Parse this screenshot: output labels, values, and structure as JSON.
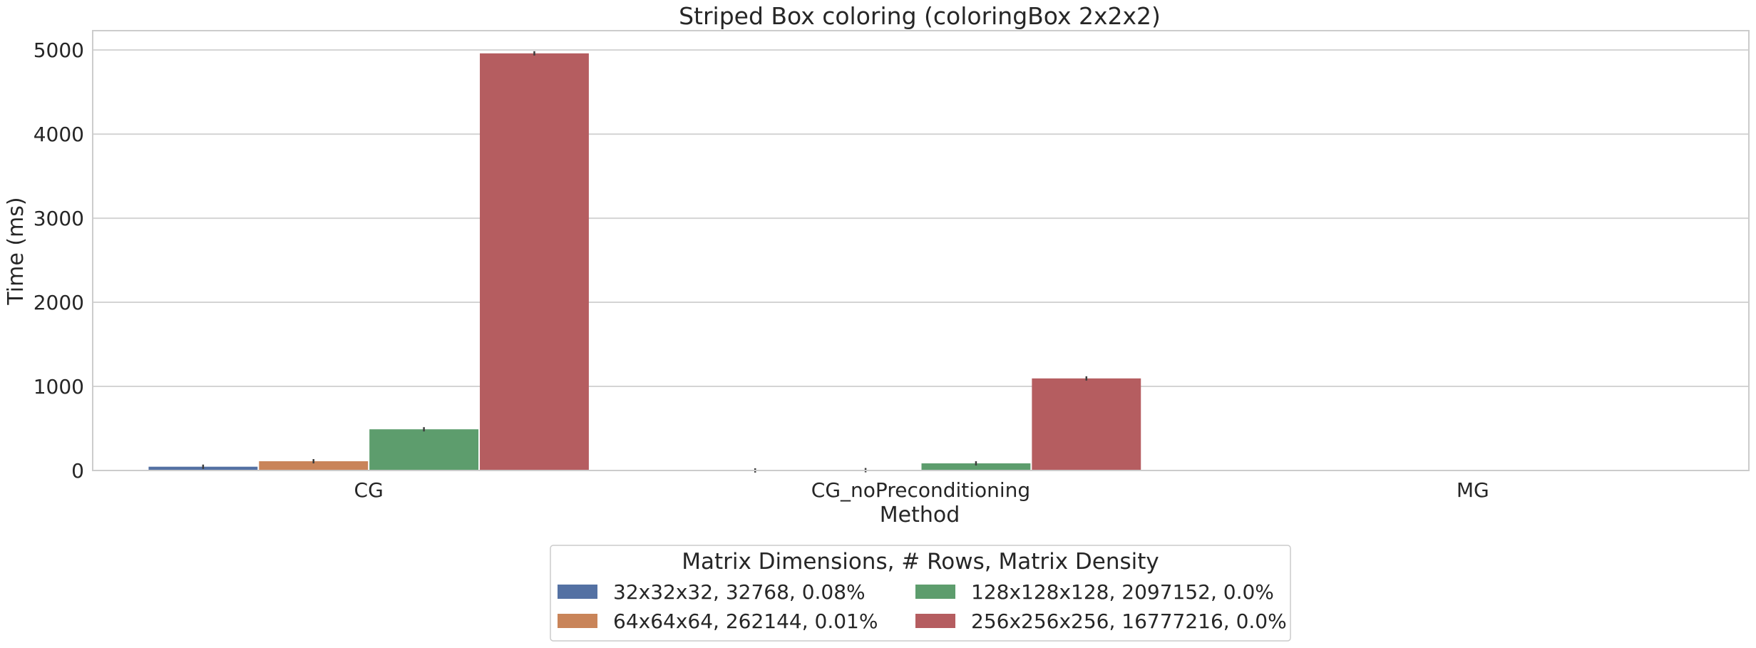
{
  "chart_data": {
    "type": "bar",
    "title": "Striped Box coloring (coloringBox 2x2x2)",
    "xlabel": "Method",
    "ylabel": "Time (ms)",
    "categories": [
      "CG",
      "CG_noPreconditioning",
      "MG"
    ],
    "ylim": [
      0,
      5230
    ],
    "yticks": [
      0,
      1000,
      2000,
      3000,
      4000,
      5000
    ],
    "grid": "horizontal",
    "legend": {
      "title": "Matrix Dimensions, # Rows, Matrix Density",
      "placement": "bottom-center",
      "columns": 2
    },
    "series": [
      {
        "name": "32x32x32, 32768, 0.08%",
        "color": "#5471a3",
        "values": [
          45,
          1,
          0
        ]
      },
      {
        "name": "64x64x64, 262144, 0.01%",
        "color": "#c98459",
        "values": [
          110,
          4,
          0
        ]
      },
      {
        "name": "128x128x128, 2097152, 0.0%",
        "color": "#5d9d6d",
        "values": [
          490,
          85,
          0
        ]
      },
      {
        "name": "256x256x256, 16777216, 0.0%",
        "color": "#b55d60",
        "values": [
          4960,
          1095,
          0
        ]
      }
    ]
  }
}
